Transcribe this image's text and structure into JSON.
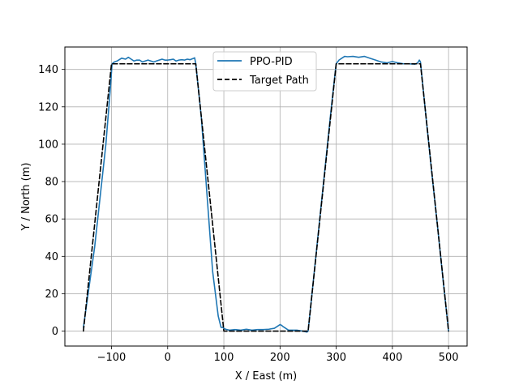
{
  "chart_data": {
    "type": "line",
    "title": "",
    "xlabel": "X / East (m)",
    "ylabel": "Y / North (m)",
    "xlim": [
      -183,
      533
    ],
    "ylim": [
      -8,
      152
    ],
    "xticks": [
      -100,
      0,
      100,
      200,
      300,
      400,
      500
    ],
    "xtick_labels": [
      "−100",
      "0",
      "100",
      "200",
      "300",
      "400",
      "500"
    ],
    "yticks": [
      0,
      20,
      40,
      60,
      80,
      100,
      120,
      140
    ],
    "ytick_labels": [
      "0",
      "20",
      "40",
      "60",
      "80",
      "100",
      "120",
      "140"
    ],
    "grid": true,
    "legend_position": "top-center",
    "series": [
      {
        "name": "PPO-PID",
        "color": "#1f77b4",
        "style": "solid",
        "x": [
          -150,
          -130,
          -110,
          -102,
          -99,
          -95,
          -90,
          -82,
          -75,
          -70,
          -65,
          -60,
          -55,
          -50,
          -45,
          -40,
          -35,
          -30,
          -25,
          -20,
          -15,
          -10,
          -5,
          0,
          5,
          10,
          15,
          20,
          25,
          30,
          35,
          40,
          45,
          48,
          50,
          60,
          70,
          80,
          90,
          95,
          98,
          100,
          103,
          110,
          120,
          130,
          140,
          150,
          160,
          170,
          180,
          190,
          195,
          200,
          203,
          205,
          210,
          215,
          220,
          230,
          240,
          248,
          250,
          260,
          270,
          280,
          290,
          298,
          300,
          305,
          310,
          315,
          320,
          330,
          340,
          350,
          360,
          370,
          380,
          390,
          400,
          410,
          420,
          430,
          440,
          445,
          448,
          450,
          460,
          470,
          480,
          490,
          500
        ],
        "y": [
          2,
          45,
          100,
          130,
          143,
          144,
          144.5,
          146,
          145.5,
          146.5,
          145.5,
          144.5,
          145,
          145,
          144,
          144.5,
          145,
          144.5,
          144,
          144.5,
          145,
          145.5,
          145,
          145,
          145.2,
          145.5,
          144.5,
          145,
          145.2,
          145,
          145.5,
          145.2,
          145.8,
          146.2,
          143,
          114,
          73,
          32,
          8,
          2,
          2,
          1.5,
          1,
          0.5,
          0.8,
          0.5,
          1,
          0.5,
          0.8,
          0.8,
          1,
          1.5,
          2.5,
          3.5,
          3,
          2.5,
          1.5,
          0.5,
          0.5,
          0.5,
          0,
          -0.5,
          0,
          29,
          58,
          87,
          116,
          138,
          143,
          145,
          146,
          147,
          146.8,
          147,
          146.5,
          147,
          146,
          145,
          144,
          143.5,
          144.2,
          143.5,
          143,
          143,
          142.8,
          143.5,
          145,
          144,
          114,
          85,
          57,
          28,
          0
        ]
      },
      {
        "name": "Target Path",
        "color": "#000000",
        "style": "dashed",
        "x": [
          -150,
          -100,
          50,
          100,
          250,
          300,
          450,
          500
        ],
        "y": [
          0,
          143,
          143,
          0,
          0,
          143,
          143,
          0
        ]
      }
    ]
  }
}
